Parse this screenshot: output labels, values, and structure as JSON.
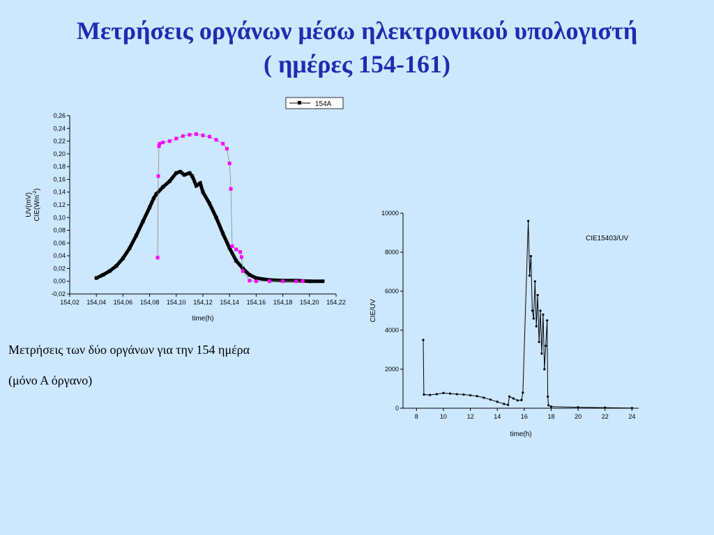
{
  "slide": {
    "title_line1": "Μετρήσεις οργάνων μέσω ηλεκτρονικού υπολογιστή",
    "title_line2": "( ημέρες 154-161)",
    "caption_line1": "Μετρήσεις των δύο οργάνων για την 154 ημέρα",
    "caption_line2": "(μόνο Α όργανο)"
  },
  "chart_data": [
    {
      "type": "scatter",
      "legend": [
        "154A"
      ],
      "legend_position": "top-center",
      "xlabel": "time(h)",
      "ylabel_line1": "UV(mV)",
      "ylabel_line2": "CIE(Wm",
      "ylabel_sup": "-2",
      "ylabel_close": ")",
      "xlim": [
        154.02,
        154.22
      ],
      "ylim": [
        -0.02,
        0.26
      ],
      "xticks": [
        "154,02",
        "154,04",
        "154,06",
        "154,08",
        "154,10",
        "154,12",
        "154,14",
        "154,16",
        "154,18",
        "154,20",
        "154,22"
      ],
      "yticks": [
        "-0,02",
        "0,00",
        "0,02",
        "0,04",
        "0,06",
        "0,08",
        "0,10",
        "0,12",
        "0,14",
        "0,16",
        "0,18",
        "0,20",
        "0,22",
        "0,24",
        "0,26"
      ],
      "colors": {
        "uv": "#000000",
        "cie": "#ff00ff"
      },
      "series": [
        {
          "name": "154A",
          "color": "#000000",
          "x": [
            154.04,
            154.045,
            154.05,
            154.055,
            154.06,
            154.065,
            154.07,
            154.075,
            154.08,
            154.083,
            154.085,
            154.09,
            154.095,
            154.1,
            154.103,
            154.106,
            154.11,
            154.112,
            154.115,
            154.118,
            154.12,
            154.125,
            154.13,
            154.135,
            154.14,
            154.145,
            154.15,
            154.155,
            154.16,
            154.17,
            154.18,
            154.19,
            154.2,
            154.21
          ],
          "y": [
            0.005,
            0.01,
            0.016,
            0.024,
            0.036,
            0.052,
            0.072,
            0.094,
            0.116,
            0.13,
            0.137,
            0.148,
            0.157,
            0.17,
            0.172,
            0.167,
            0.17,
            0.165,
            0.15,
            0.154,
            0.14,
            0.122,
            0.1,
            0.075,
            0.052,
            0.032,
            0.02,
            0.01,
            0.005,
            0.002,
            0.001,
            0.001,
            0.0,
            0.0
          ]
        },
        {
          "color": "#ff00ff",
          "x": [
            154.086,
            154.0865,
            154.087,
            154.0875,
            154.09,
            154.095,
            154.1,
            154.105,
            154.11,
            154.115,
            154.12,
            154.125,
            154.13,
            154.135,
            154.138,
            154.14,
            154.141,
            154.142,
            154.145,
            154.148,
            154.149,
            154.15,
            154.155,
            154.16,
            154.17,
            154.18,
            154.19,
            154.195
          ],
          "y": [
            0.037,
            0.165,
            0.212,
            0.216,
            0.218,
            0.22,
            0.224,
            0.228,
            0.23,
            0.231,
            0.229,
            0.227,
            0.222,
            0.216,
            0.208,
            0.185,
            0.145,
            0.055,
            0.05,
            0.046,
            0.038,
            0.016,
            0.001,
            0.0,
            0.0,
            0.0,
            0.0,
            0.0
          ]
        }
      ]
    },
    {
      "type": "line",
      "annotation": "CIE15403/UV",
      "xlabel": "time(h)",
      "ylabel": "CIE/UV",
      "xlim": [
        7,
        24.5
      ],
      "ylim": [
        0,
        10000
      ],
      "xticks": [
        "8",
        "10",
        "12",
        "14",
        "16",
        "18",
        "20",
        "22",
        "24"
      ],
      "yticks": [
        "0",
        "2000",
        "4000",
        "6000",
        "8000",
        "10000"
      ],
      "series": [
        {
          "color": "#000000",
          "x": [
            8.5,
            8.55,
            9,
            9.5,
            10,
            10.5,
            11,
            11.5,
            12,
            12.5,
            13,
            13.5,
            14,
            14.5,
            14.8,
            14.9,
            15.2,
            15.5,
            15.8,
            15.9,
            16.3,
            16.4,
            16.5,
            16.6,
            16.7,
            16.8,
            16.9,
            17.0,
            17.1,
            17.2,
            17.3,
            17.4,
            17.5,
            17.6,
            17.7,
            17.75,
            17.8,
            18.0,
            20,
            22,
            24
          ],
          "y": [
            3500,
            700,
            680,
            720,
            780,
            750,
            720,
            700,
            660,
            620,
            540,
            440,
            330,
            220,
            170,
            600,
            500,
            400,
            420,
            800,
            9600,
            6800,
            7800,
            5000,
            4600,
            6500,
            4200,
            5800,
            3400,
            5000,
            2800,
            4800,
            2000,
            3200,
            4500,
            600,
            150,
            80,
            50,
            30,
            10
          ]
        }
      ]
    }
  ]
}
